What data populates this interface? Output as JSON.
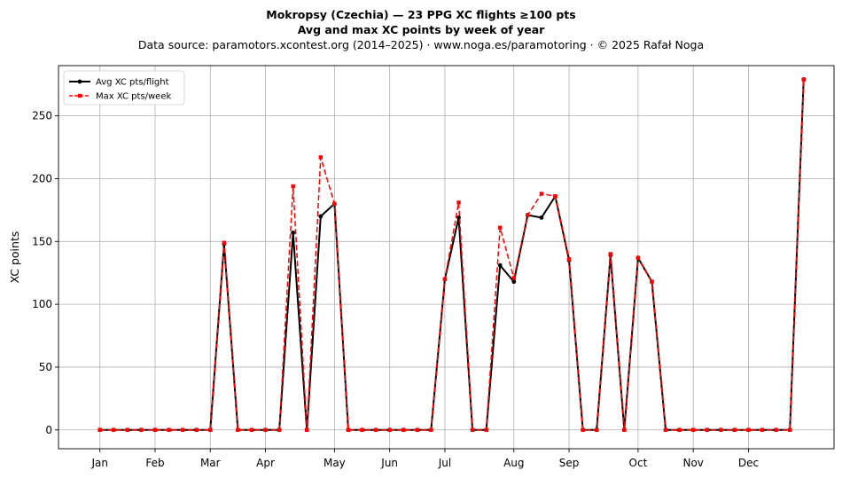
{
  "chart_data": {
    "type": "line",
    "title": "Mokropsy (Czechia)  —  23 PPG XC flights ≥100 pts",
    "subtitle": "Avg and max XC points by week of year",
    "source": "Data source: paramotors.xcontest.org (2014–2025)  ·  www.noga.es/paramotoring  ·  © 2025 Rafał Noga",
    "ylabel": "XC points",
    "xlabel": "",
    "xlim": [
      -2.0,
      54.2
    ],
    "ylim": [
      -15,
      290
    ],
    "month_ticks": [
      {
        "label": "Jan",
        "week": 1
      },
      {
        "label": "Feb",
        "week": 5
      },
      {
        "label": "Mar",
        "week": 9
      },
      {
        "label": "Apr",
        "week": 13
      },
      {
        "label": "May",
        "week": 18
      },
      {
        "label": "Jun",
        "week": 22
      },
      {
        "label": "Jul",
        "week": 26
      },
      {
        "label": "Aug",
        "week": 31
      },
      {
        "label": "Sep",
        "week": 35
      },
      {
        "label": "Oct",
        "week": 40
      },
      {
        "label": "Nov",
        "week": 44
      },
      {
        "label": "Dec",
        "week": 48
      }
    ],
    "yticks": [
      0,
      50,
      100,
      150,
      200,
      250
    ],
    "grid": true,
    "legend_position": "top-left",
    "x": [
      1,
      2,
      3,
      4,
      5,
      6,
      7,
      8,
      9,
      10,
      11,
      12,
      13,
      14,
      15,
      16,
      17,
      18,
      19,
      20,
      21,
      22,
      23,
      24,
      25,
      26,
      27,
      28,
      29,
      30,
      31,
      32,
      33,
      34,
      35,
      36,
      37,
      38,
      39,
      40,
      41,
      42,
      43,
      44,
      45,
      46,
      47,
      48,
      49,
      50,
      51,
      52
    ],
    "series": [
      {
        "name": "Avg XC pts/flight",
        "color": "#000000",
        "style": "solid-circle",
        "values": [
          0,
          0,
          0,
          0,
          0,
          0,
          0,
          0,
          0,
          148,
          0,
          0,
          0,
          0,
          157,
          0,
          170,
          180,
          0,
          0,
          0,
          0,
          0,
          0,
          0,
          120,
          169,
          0,
          0,
          131,
          118,
          171,
          169,
          186,
          135,
          0,
          0,
          139,
          0,
          137,
          118,
          0,
          0,
          0,
          0,
          0,
          0,
          0,
          0,
          0,
          0,
          279
        ]
      },
      {
        "name": "Max XC pts/week",
        "color": "#ff0000",
        "style": "dashed-square",
        "values": [
          0,
          0,
          0,
          0,
          0,
          0,
          0,
          0,
          0,
          149,
          0,
          0,
          0,
          0,
          194,
          0,
          217,
          180,
          0,
          0,
          0,
          0,
          0,
          0,
          0,
          120,
          181,
          0,
          0,
          161,
          121,
          171,
          188,
          186,
          136,
          0,
          0,
          140,
          0,
          137,
          118,
          0,
          0,
          0,
          0,
          0,
          0,
          0,
          0,
          0,
          0,
          279
        ]
      }
    ]
  }
}
